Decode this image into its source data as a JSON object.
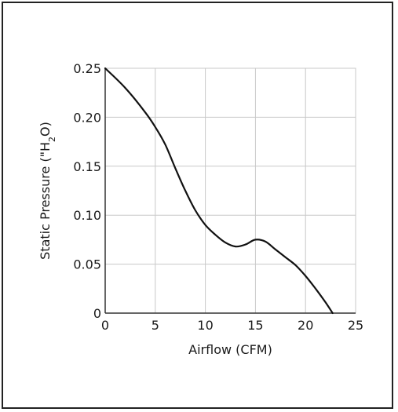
{
  "chart_data": {
    "type": "line",
    "title": "",
    "xlabel": "Airflow (CFM)",
    "ylabel_parts": {
      "pre": "Static Pressure (\"H",
      "sub": "2",
      "post": "O)"
    },
    "xlim": [
      0,
      25
    ],
    "ylim": [
      0,
      0.25
    ],
    "x_ticks": [
      0,
      5,
      10,
      15,
      20,
      25
    ],
    "x_tick_labels": [
      "0",
      "5",
      "10",
      "15",
      "20",
      "25"
    ],
    "y_ticks": [
      0,
      0.05,
      0.1,
      0.15,
      0.2,
      0.25
    ],
    "y_tick_labels": [
      "0",
      "0.05",
      "0.10",
      "0.15",
      "0.20",
      "0.25"
    ],
    "grid": true,
    "series": [
      {
        "x": [
          0,
          2,
          4,
          5,
          6,
          7,
          8,
          9,
          10,
          11,
          12,
          13,
          14,
          15,
          16,
          17,
          18,
          19,
          20,
          21,
          22,
          22.7
        ],
        "y": [
          0.25,
          0.23,
          0.205,
          0.19,
          0.172,
          0.148,
          0.125,
          0.105,
          0.09,
          0.08,
          0.072,
          0.068,
          0.07,
          0.075,
          0.073,
          0.065,
          0.057,
          0.049,
          0.038,
          0.025,
          0.011,
          0
        ]
      }
    ],
    "colors": {
      "line": "#111111",
      "grid": "#c8c8c8",
      "axis": "#333333"
    }
  }
}
